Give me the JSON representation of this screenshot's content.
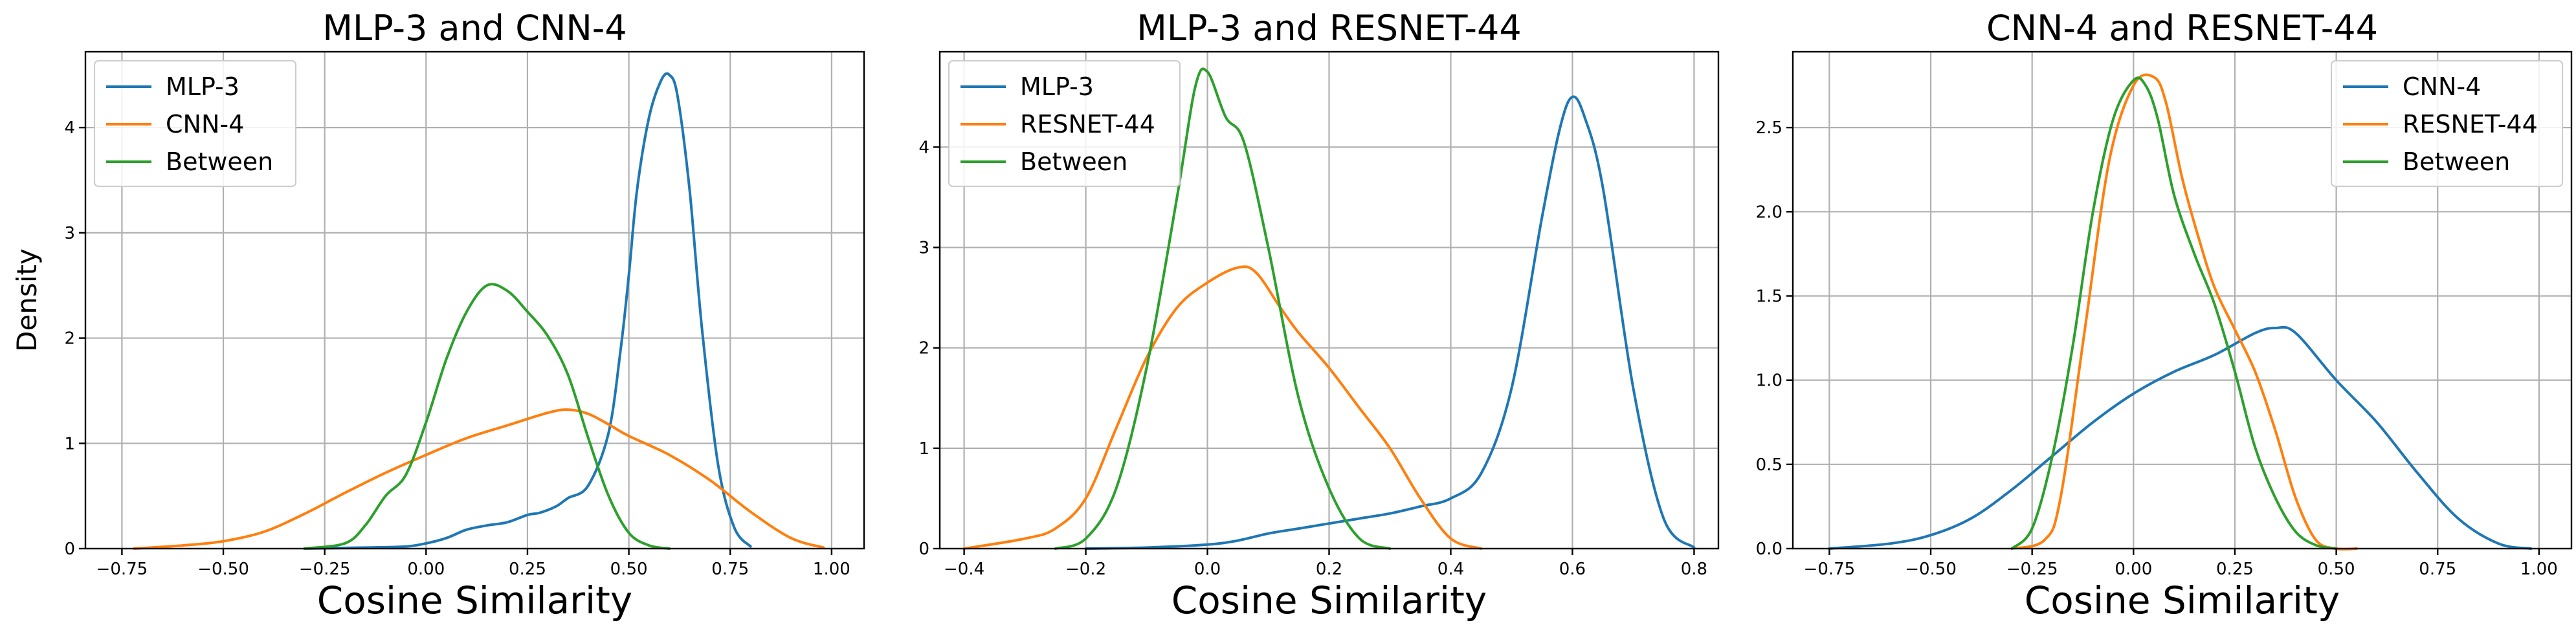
{
  "figure": {
    "ylabel": "Density"
  },
  "chart_data": [
    {
      "type": "line",
      "title": "MLP-3 and CNN-4",
      "xlabel": "Cosine Similarity",
      "ylabel": "Density",
      "xlim": [
        -0.84,
        1.08
      ],
      "ylim": [
        0,
        4.72
      ],
      "xticks": [
        -0.75,
        -0.5,
        -0.25,
        0.0,
        0.25,
        0.5,
        0.75,
        1.0
      ],
      "xtick_labels": [
        "−0.75",
        "−0.50",
        "−0.25",
        "0.00",
        "0.25",
        "0.50",
        "0.75",
        "1.00"
      ],
      "yticks": [
        0,
        1,
        2,
        3,
        4
      ],
      "ytick_labels": [
        "0",
        "1",
        "2",
        "3",
        "4"
      ],
      "grid": true,
      "legend": "upper left",
      "series": [
        {
          "name": "MLP-3",
          "color": "#1f77b4",
          "x": [
            -0.3,
            -0.15,
            -0.05,
            0.0,
            0.05,
            0.1,
            0.15,
            0.2,
            0.25,
            0.28,
            0.32,
            0.35,
            0.4,
            0.45,
            0.48,
            0.5,
            0.52,
            0.55,
            0.58,
            0.6,
            0.62,
            0.65,
            0.68,
            0.72,
            0.76,
            0.8
          ],
          "y": [
            0,
            0.01,
            0.02,
            0.05,
            0.1,
            0.18,
            0.22,
            0.25,
            0.32,
            0.34,
            0.4,
            0.48,
            0.6,
            1.1,
            1.9,
            2.6,
            3.4,
            4.1,
            4.45,
            4.5,
            4.3,
            3.4,
            2.1,
            0.8,
            0.2,
            0.02
          ]
        },
        {
          "name": "CNN-4",
          "color": "#ff7f0e",
          "x": [
            -0.72,
            -0.6,
            -0.5,
            -0.4,
            -0.3,
            -0.2,
            -0.1,
            0.0,
            0.1,
            0.2,
            0.3,
            0.35,
            0.4,
            0.45,
            0.5,
            0.6,
            0.7,
            0.8,
            0.9,
            0.98
          ],
          "y": [
            0.0,
            0.03,
            0.07,
            0.16,
            0.33,
            0.53,
            0.72,
            0.89,
            1.05,
            1.17,
            1.29,
            1.32,
            1.28,
            1.18,
            1.07,
            0.89,
            0.65,
            0.35,
            0.1,
            0.01
          ]
        },
        {
          "name": "Between",
          "color": "#2ca02c",
          "x": [
            -0.3,
            -0.2,
            -0.15,
            -0.1,
            -0.05,
            0.0,
            0.05,
            0.1,
            0.15,
            0.2,
            0.25,
            0.3,
            0.35,
            0.4,
            0.45,
            0.5,
            0.55,
            0.6
          ],
          "y": [
            0.0,
            0.05,
            0.22,
            0.5,
            0.7,
            1.2,
            1.8,
            2.25,
            2.5,
            2.45,
            2.25,
            2.02,
            1.65,
            1.05,
            0.5,
            0.15,
            0.03,
            0.0
          ]
        }
      ]
    },
    {
      "type": "line",
      "title": "MLP-3 and RESNET-44",
      "xlabel": "Cosine Similarity",
      "ylabel": "",
      "xlim": [
        -0.44,
        0.84
      ],
      "ylim": [
        0,
        4.95
      ],
      "xticks": [
        -0.4,
        -0.2,
        0.0,
        0.2,
        0.4,
        0.6,
        0.8
      ],
      "xtick_labels": [
        "−0.4",
        "−0.2",
        "0.0",
        "0.2",
        "0.4",
        "0.6",
        "0.8"
      ],
      "yticks": [
        0,
        1,
        2,
        3,
        4
      ],
      "ytick_labels": [
        "0",
        "1",
        "2",
        "3",
        "4"
      ],
      "grid": true,
      "legend": "upper left",
      "series": [
        {
          "name": "MLP-3",
          "color": "#1f77b4",
          "x": [
            -0.2,
            -0.1,
            0.0,
            0.05,
            0.1,
            0.15,
            0.2,
            0.25,
            0.3,
            0.35,
            0.4,
            0.45,
            0.5,
            0.55,
            0.58,
            0.6,
            0.62,
            0.65,
            0.7,
            0.75,
            0.8
          ],
          "y": [
            0.0,
            0.01,
            0.04,
            0.08,
            0.15,
            0.2,
            0.25,
            0.3,
            0.35,
            0.42,
            0.5,
            0.75,
            1.6,
            3.3,
            4.2,
            4.5,
            4.3,
            3.6,
            1.6,
            0.3,
            0.01
          ]
        },
        {
          "name": "RESNET-44",
          "color": "#ff7f0e",
          "x": [
            -0.4,
            -0.3,
            -0.25,
            -0.2,
            -0.15,
            -0.1,
            -0.05,
            0.0,
            0.05,
            0.08,
            0.12,
            0.15,
            0.2,
            0.25,
            0.3,
            0.35,
            0.4,
            0.45
          ],
          "y": [
            0.0,
            0.1,
            0.2,
            0.5,
            1.2,
            1.9,
            2.4,
            2.65,
            2.8,
            2.75,
            2.4,
            2.15,
            1.8,
            1.4,
            1.0,
            0.5,
            0.1,
            0.0
          ]
        },
        {
          "name": "Between",
          "color": "#2ca02c",
          "x": [
            -0.25,
            -0.2,
            -0.15,
            -0.1,
            -0.05,
            -0.02,
            0.0,
            0.03,
            0.06,
            0.1,
            0.15,
            0.2,
            0.25,
            0.3
          ],
          "y": [
            0.0,
            0.1,
            0.6,
            1.8,
            3.5,
            4.6,
            4.75,
            4.3,
            4.05,
            3.0,
            1.5,
            0.6,
            0.1,
            0.0
          ]
        }
      ]
    },
    {
      "type": "line",
      "title": "CNN-4 and RESNET-44",
      "xlabel": "Cosine Similarity",
      "ylabel": "",
      "xlim": [
        -0.84,
        1.08
      ],
      "ylim": [
        0,
        2.95
      ],
      "xticks": [
        -0.75,
        -0.5,
        -0.25,
        0.0,
        0.25,
        0.5,
        0.75,
        1.0
      ],
      "xtick_labels": [
        "−0.75",
        "−0.50",
        "−0.25",
        "0.00",
        "0.25",
        "0.50",
        "0.75",
        "1.00"
      ],
      "yticks": [
        0.0,
        0.5,
        1.0,
        1.5,
        2.0,
        2.5
      ],
      "ytick_labels": [
        "0.0",
        "0.5",
        "1.0",
        "1.5",
        "2.0",
        "2.5"
      ],
      "grid": true,
      "legend": "upper right",
      "series": [
        {
          "name": "CNN-4",
          "color": "#1f77b4",
          "x": [
            -0.75,
            -0.6,
            -0.5,
            -0.4,
            -0.3,
            -0.2,
            -0.1,
            0.0,
            0.1,
            0.2,
            0.3,
            0.35,
            0.4,
            0.5,
            0.6,
            0.7,
            0.8,
            0.9,
            0.98
          ],
          "y": [
            0.0,
            0.03,
            0.08,
            0.18,
            0.35,
            0.55,
            0.75,
            0.92,
            1.05,
            1.15,
            1.28,
            1.31,
            1.28,
            1.0,
            0.75,
            0.45,
            0.18,
            0.03,
            0.0
          ]
        },
        {
          "name": "RESNET-44",
          "color": "#ff7f0e",
          "x": [
            -0.3,
            -0.22,
            -0.18,
            -0.12,
            -0.06,
            0.0,
            0.05,
            0.08,
            0.12,
            0.16,
            0.2,
            0.25,
            0.3,
            0.35,
            0.4,
            0.45,
            0.5,
            0.55
          ],
          "y": [
            0.0,
            0.05,
            0.3,
            1.3,
            2.3,
            2.75,
            2.8,
            2.65,
            2.2,
            1.85,
            1.55,
            1.3,
            1.05,
            0.7,
            0.3,
            0.05,
            0.0,
            0.0
          ]
        },
        {
          "name": "Between",
          "color": "#2ca02c",
          "x": [
            -0.3,
            -0.25,
            -0.2,
            -0.15,
            -0.1,
            -0.05,
            0.0,
            0.03,
            0.06,
            0.1,
            0.15,
            0.2,
            0.25,
            0.3,
            0.35,
            0.4,
            0.45,
            0.5
          ],
          "y": [
            0.0,
            0.12,
            0.55,
            1.2,
            2.0,
            2.55,
            2.78,
            2.75,
            2.55,
            2.1,
            1.75,
            1.45,
            1.05,
            0.6,
            0.3,
            0.1,
            0.02,
            0.0
          ]
        }
      ]
    }
  ]
}
